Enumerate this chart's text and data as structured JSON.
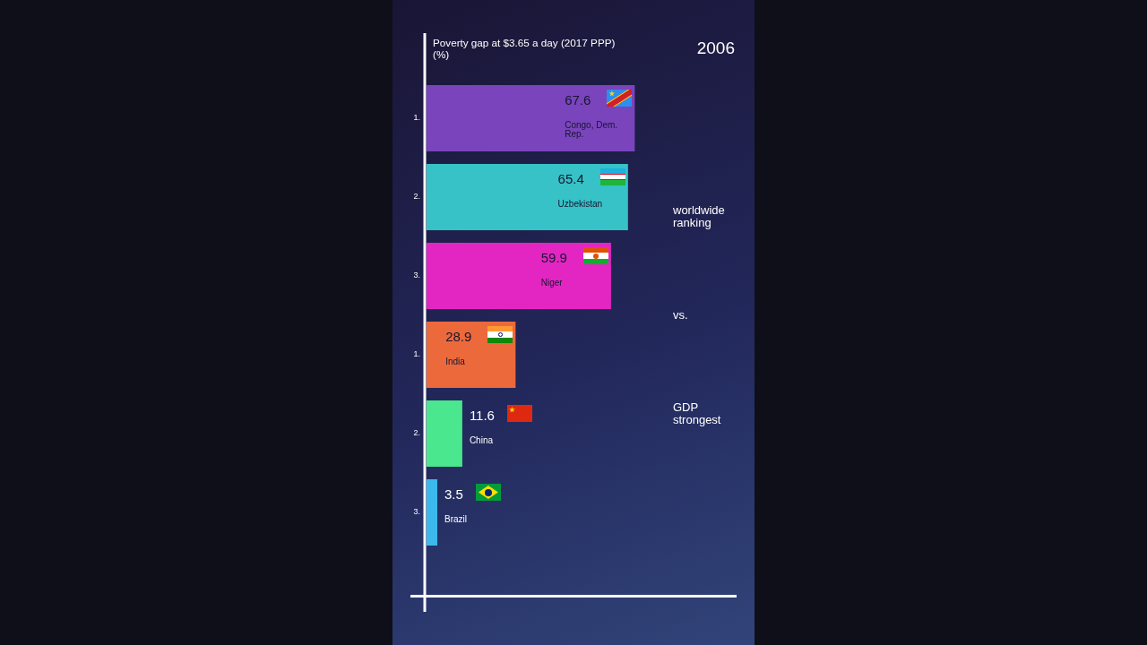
{
  "chart_data": {
    "type": "bar",
    "orientation": "horizontal",
    "title": "Poverty gap at $3.65 a day (2017 PPP) (%)",
    "subtitle": "2006",
    "categories": [
      "Congo, Dem. Rep.",
      "Uzbekistan",
      "Niger",
      "India",
      "China",
      "Brazil"
    ],
    "values": [
      67.6,
      65.4,
      59.9,
      28.9,
      11.6,
      3.5
    ],
    "colors": [
      "#7a44bc",
      "#36c2c6",
      "#e326c2",
      "#ec693c",
      "#4ae78e",
      "#3cb8ec"
    ],
    "data_labels": true,
    "tick_labels": false,
    "legend": false,
    "annotations": [
      "1.",
      "2.",
      "3.",
      "1.",
      "2.",
      "3.",
      "worldwide ranking",
      "vs.",
      "GDP strongest"
    ]
  }
}
